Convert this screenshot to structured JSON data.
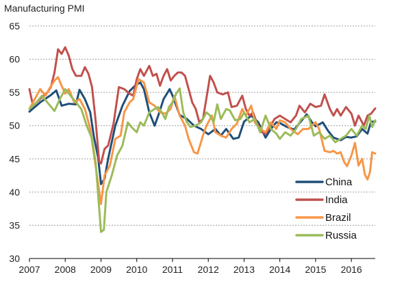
{
  "chart_data": {
    "type": "line",
    "title": "Manufacturing PMI",
    "xlabel": "",
    "ylabel": "",
    "ylim": [
      30,
      65
    ],
    "yticks": [
      30,
      35,
      40,
      45,
      50,
      55,
      60,
      65
    ],
    "xlim": [
      2007,
      2016.667
    ],
    "xticks": [
      "2007",
      "2008",
      "2009",
      "2010",
      "2011",
      "2012",
      "2013",
      "2014",
      "2015",
      "2016"
    ],
    "grid": "horizontal dotted",
    "legend_position": "bottom-right",
    "series": [
      {
        "name": "China",
        "color": "#1F4E79",
        "points": [
          [
            2007.0,
            52.1
          ],
          [
            2007.3,
            53.5
          ],
          [
            2007.6,
            54.6
          ],
          [
            2007.75,
            55.3
          ],
          [
            2007.9,
            53.0
          ],
          [
            2008.1,
            53.3
          ],
          [
            2008.3,
            53.2
          ],
          [
            2008.4,
            55.4
          ],
          [
            2008.55,
            54.0
          ],
          [
            2008.7,
            52.0
          ],
          [
            2008.8,
            48.4
          ],
          [
            2008.92,
            45.2
          ],
          [
            2009.0,
            41.2
          ],
          [
            2009.1,
            42.0
          ],
          [
            2009.2,
            45.0
          ],
          [
            2009.4,
            50.0
          ],
          [
            2009.6,
            53.0
          ],
          [
            2009.8,
            55.2
          ],
          [
            2009.95,
            56.0
          ],
          [
            2010.1,
            56.5
          ],
          [
            2010.2,
            55.5
          ],
          [
            2010.35,
            52.0
          ],
          [
            2010.5,
            50.0
          ],
          [
            2010.6,
            51.5
          ],
          [
            2010.75,
            54.0
          ],
          [
            2010.92,
            55.5
          ],
          [
            2011.0,
            54.5
          ],
          [
            2011.2,
            51.6
          ],
          [
            2011.4,
            51.0
          ],
          [
            2011.6,
            50.0
          ],
          [
            2011.8,
            49.5
          ],
          [
            2012.0,
            48.7
          ],
          [
            2012.2,
            49.5
          ],
          [
            2012.35,
            48.5
          ],
          [
            2012.5,
            49.5
          ],
          [
            2012.7,
            48.0
          ],
          [
            2012.85,
            48.2
          ],
          [
            2013.0,
            50.6
          ],
          [
            2013.2,
            51.5
          ],
          [
            2013.4,
            50.5
          ],
          [
            2013.6,
            48.2
          ],
          [
            2013.75,
            49.5
          ],
          [
            2013.9,
            50.5
          ],
          [
            2014.0,
            50.4
          ],
          [
            2014.2,
            49.8
          ],
          [
            2014.4,
            49.4
          ],
          [
            2014.6,
            50.7
          ],
          [
            2014.75,
            51.7
          ],
          [
            2014.9,
            50.5
          ],
          [
            2015.0,
            49.9
          ],
          [
            2015.2,
            50.5
          ],
          [
            2015.35,
            49.2
          ],
          [
            2015.5,
            48.2
          ],
          [
            2015.7,
            47.8
          ],
          [
            2015.85,
            48.3
          ],
          [
            2016.0,
            48.2
          ],
          [
            2016.15,
            48.4
          ],
          [
            2016.3,
            49.5
          ],
          [
            2016.45,
            48.8
          ],
          [
            2016.55,
            50.6
          ],
          [
            2016.667,
            50.6
          ]
        ]
      },
      {
        "name": "India",
        "color": "#C0504D",
        "points": [
          [
            2007.0,
            55.5
          ],
          [
            2007.1,
            53.0
          ],
          [
            2007.3,
            54.0
          ],
          [
            2007.5,
            55.0
          ],
          [
            2007.6,
            55.8
          ],
          [
            2007.7,
            58.0
          ],
          [
            2007.8,
            61.5
          ],
          [
            2007.9,
            60.8
          ],
          [
            2008.0,
            61.8
          ],
          [
            2008.1,
            60.5
          ],
          [
            2008.2,
            58.5
          ],
          [
            2008.3,
            57.5
          ],
          [
            2008.45,
            57.5
          ],
          [
            2008.55,
            58.8
          ],
          [
            2008.65,
            57.8
          ],
          [
            2008.75,
            55.8
          ],
          [
            2008.85,
            50.8
          ],
          [
            2008.95,
            44.5
          ],
          [
            2009.0,
            44.3
          ],
          [
            2009.1,
            46.5
          ],
          [
            2009.2,
            47.0
          ],
          [
            2009.35,
            50.3
          ],
          [
            2009.5,
            55.8
          ],
          [
            2009.65,
            55.5
          ],
          [
            2009.8,
            54.8
          ],
          [
            2009.9,
            54.5
          ],
          [
            2010.0,
            57.0
          ],
          [
            2010.1,
            58.5
          ],
          [
            2010.2,
            57.5
          ],
          [
            2010.35,
            59.0
          ],
          [
            2010.45,
            57.5
          ],
          [
            2010.55,
            57.8
          ],
          [
            2010.65,
            56.0
          ],
          [
            2010.75,
            57.5
          ],
          [
            2010.85,
            58.5
          ],
          [
            2010.95,
            56.8
          ],
          [
            2011.05,
            57.5
          ],
          [
            2011.15,
            58.0
          ],
          [
            2011.25,
            58.0
          ],
          [
            2011.35,
            57.5
          ],
          [
            2011.45,
            55.5
          ],
          [
            2011.55,
            53.5
          ],
          [
            2011.65,
            52.5
          ],
          [
            2011.75,
            50.5
          ],
          [
            2011.85,
            51.0
          ],
          [
            2011.95,
            54.2
          ],
          [
            2012.05,
            57.5
          ],
          [
            2012.15,
            56.5
          ],
          [
            2012.25,
            55.0
          ],
          [
            2012.4,
            54.7
          ],
          [
            2012.55,
            55.0
          ],
          [
            2012.65,
            52.8
          ],
          [
            2012.8,
            53.0
          ],
          [
            2012.95,
            54.5
          ],
          [
            2013.05,
            52.5
          ],
          [
            2013.15,
            51.5
          ],
          [
            2013.25,
            52.0
          ],
          [
            2013.35,
            50.5
          ],
          [
            2013.5,
            49.0
          ],
          [
            2013.6,
            48.8
          ],
          [
            2013.7,
            49.5
          ],
          [
            2013.85,
            51.0
          ],
          [
            2014.0,
            51.5
          ],
          [
            2014.15,
            51.0
          ],
          [
            2014.3,
            50.5
          ],
          [
            2014.45,
            51.5
          ],
          [
            2014.55,
            53.0
          ],
          [
            2014.7,
            52.0
          ],
          [
            2014.85,
            53.3
          ],
          [
            2015.0,
            52.8
          ],
          [
            2015.15,
            53.0
          ],
          [
            2015.25,
            54.7
          ],
          [
            2015.4,
            52.5
          ],
          [
            2015.5,
            51.5
          ],
          [
            2015.6,
            52.5
          ],
          [
            2015.7,
            51.5
          ],
          [
            2015.85,
            52.8
          ],
          [
            2016.0,
            51.8
          ],
          [
            2016.1,
            50.0
          ],
          [
            2016.2,
            51.5
          ],
          [
            2016.35,
            50.0
          ],
          [
            2016.45,
            51.5
          ],
          [
            2016.55,
            51.8
          ],
          [
            2016.667,
            52.6
          ]
        ]
      },
      {
        "name": "Brazil",
        "color": "#F79646",
        "points": [
          [
            2007.0,
            52.5
          ],
          [
            2007.15,
            54.0
          ],
          [
            2007.3,
            55.5
          ],
          [
            2007.45,
            54.5
          ],
          [
            2007.55,
            55.5
          ],
          [
            2007.7,
            56.8
          ],
          [
            2007.8,
            57.3
          ],
          [
            2007.9,
            56.0
          ],
          [
            2008.0,
            54.8
          ],
          [
            2008.1,
            55.5
          ],
          [
            2008.25,
            53.5
          ],
          [
            2008.4,
            54.0
          ],
          [
            2008.55,
            52.5
          ],
          [
            2008.7,
            49.5
          ],
          [
            2008.8,
            45.8
          ],
          [
            2008.9,
            42.0
          ],
          [
            2009.0,
            38.2
          ],
          [
            2009.1,
            42.5
          ],
          [
            2009.25,
            44.0
          ],
          [
            2009.4,
            48.0
          ],
          [
            2009.55,
            48.5
          ],
          [
            2009.65,
            52.0
          ],
          [
            2009.8,
            53.5
          ],
          [
            2009.9,
            54.0
          ],
          [
            2010.05,
            57.0
          ],
          [
            2010.2,
            56.5
          ],
          [
            2010.35,
            53.5
          ],
          [
            2010.5,
            53.0
          ],
          [
            2010.65,
            52.0
          ],
          [
            2010.8,
            51.8
          ],
          [
            2010.95,
            52.5
          ],
          [
            2011.05,
            54.5
          ],
          [
            2011.2,
            51.5
          ],
          [
            2011.35,
            50.0
          ],
          [
            2011.45,
            48.0
          ],
          [
            2011.6,
            46.0
          ],
          [
            2011.7,
            45.8
          ],
          [
            2011.85,
            48.5
          ],
          [
            2011.95,
            50.0
          ],
          [
            2012.1,
            51.5
          ],
          [
            2012.2,
            49.0
          ],
          [
            2012.35,
            48.5
          ],
          [
            2012.5,
            48.2
          ],
          [
            2012.65,
            49.5
          ],
          [
            2012.8,
            50.3
          ],
          [
            2012.95,
            52.5
          ],
          [
            2013.05,
            51.5
          ],
          [
            2013.2,
            53.0
          ],
          [
            2013.3,
            50.5
          ],
          [
            2013.45,
            49.5
          ],
          [
            2013.6,
            49.0
          ],
          [
            2013.75,
            50.5
          ],
          [
            2013.9,
            49.5
          ],
          [
            2014.0,
            50.8
          ],
          [
            2014.15,
            50.5
          ],
          [
            2014.3,
            49.5
          ],
          [
            2014.5,
            48.7
          ],
          [
            2014.65,
            49.5
          ],
          [
            2014.8,
            49.5
          ],
          [
            2015.0,
            50.5
          ],
          [
            2015.1,
            49.5
          ],
          [
            2015.25,
            46.2
          ],
          [
            2015.4,
            46.0
          ],
          [
            2015.5,
            46.2
          ],
          [
            2015.6,
            45.8
          ],
          [
            2015.7,
            46.0
          ],
          [
            2015.8,
            44.5
          ],
          [
            2015.88,
            43.9
          ],
          [
            2016.0,
            45.5
          ],
          [
            2016.1,
            47.4
          ],
          [
            2016.2,
            44.0
          ],
          [
            2016.3,
            45.0
          ],
          [
            2016.38,
            42.6
          ],
          [
            2016.45,
            41.9
          ],
          [
            2016.52,
            43.0
          ],
          [
            2016.58,
            46.0
          ],
          [
            2016.667,
            45.8
          ]
        ]
      },
      {
        "name": "Russia",
        "color": "#9BBB59",
        "points": [
          [
            2007.0,
            52.5
          ],
          [
            2007.2,
            53.5
          ],
          [
            2007.35,
            54.5
          ],
          [
            2007.5,
            53.5
          ],
          [
            2007.7,
            52.2
          ],
          [
            2007.85,
            54.0
          ],
          [
            2008.0,
            55.5
          ],
          [
            2008.15,
            54.5
          ],
          [
            2008.3,
            53.5
          ],
          [
            2008.45,
            52.5
          ],
          [
            2008.6,
            50.0
          ],
          [
            2008.75,
            48.0
          ],
          [
            2008.85,
            44.5
          ],
          [
            2008.9,
            41.0
          ],
          [
            2009.0,
            34.0
          ],
          [
            2009.08,
            34.3
          ],
          [
            2009.15,
            40.0
          ],
          [
            2009.3,
            42.5
          ],
          [
            2009.45,
            45.5
          ],
          [
            2009.6,
            47.0
          ],
          [
            2009.75,
            50.5
          ],
          [
            2009.85,
            49.8
          ],
          [
            2010.0,
            49.0
          ],
          [
            2010.1,
            50.5
          ],
          [
            2010.2,
            50.0
          ],
          [
            2010.35,
            52.0
          ],
          [
            2010.5,
            52.5
          ],
          [
            2010.6,
            52.8
          ],
          [
            2010.7,
            52.0
          ],
          [
            2010.8,
            51.0
          ],
          [
            2010.9,
            52.8
          ],
          [
            2011.0,
            53.5
          ],
          [
            2011.1,
            54.8
          ],
          [
            2011.2,
            55.6
          ],
          [
            2011.3,
            52.0
          ],
          [
            2011.4,
            50.5
          ],
          [
            2011.5,
            49.8
          ],
          [
            2011.65,
            50.0
          ],
          [
            2011.8,
            50.5
          ],
          [
            2011.95,
            52.0
          ],
          [
            2012.05,
            51.5
          ],
          [
            2012.15,
            50.5
          ],
          [
            2012.25,
            53.2
          ],
          [
            2012.35,
            51.0
          ],
          [
            2012.5,
            52.5
          ],
          [
            2012.6,
            52.3
          ],
          [
            2012.75,
            50.8
          ],
          [
            2012.9,
            51.0
          ],
          [
            2013.0,
            52.0
          ],
          [
            2013.15,
            50.5
          ],
          [
            2013.3,
            51.0
          ],
          [
            2013.45,
            49.0
          ],
          [
            2013.6,
            51.5
          ],
          [
            2013.75,
            49.5
          ],
          [
            2013.9,
            48.8
          ],
          [
            2014.0,
            48.0
          ],
          [
            2014.15,
            49.0
          ],
          [
            2014.3,
            48.5
          ],
          [
            2014.45,
            49.5
          ],
          [
            2014.6,
            51.0
          ],
          [
            2014.8,
            51.5
          ],
          [
            2014.95,
            48.5
          ],
          [
            2015.1,
            49.0
          ],
          [
            2015.25,
            48.0
          ],
          [
            2015.4,
            48.5
          ],
          [
            2015.55,
            47.5
          ],
          [
            2015.7,
            48.0
          ],
          [
            2015.85,
            48.5
          ],
          [
            2016.0,
            49.5
          ],
          [
            2016.15,
            48.5
          ],
          [
            2016.3,
            50.0
          ],
          [
            2016.4,
            49.5
          ],
          [
            2016.5,
            51.5
          ],
          [
            2016.58,
            49.8
          ],
          [
            2016.667,
            50.8
          ]
        ]
      }
    ]
  }
}
